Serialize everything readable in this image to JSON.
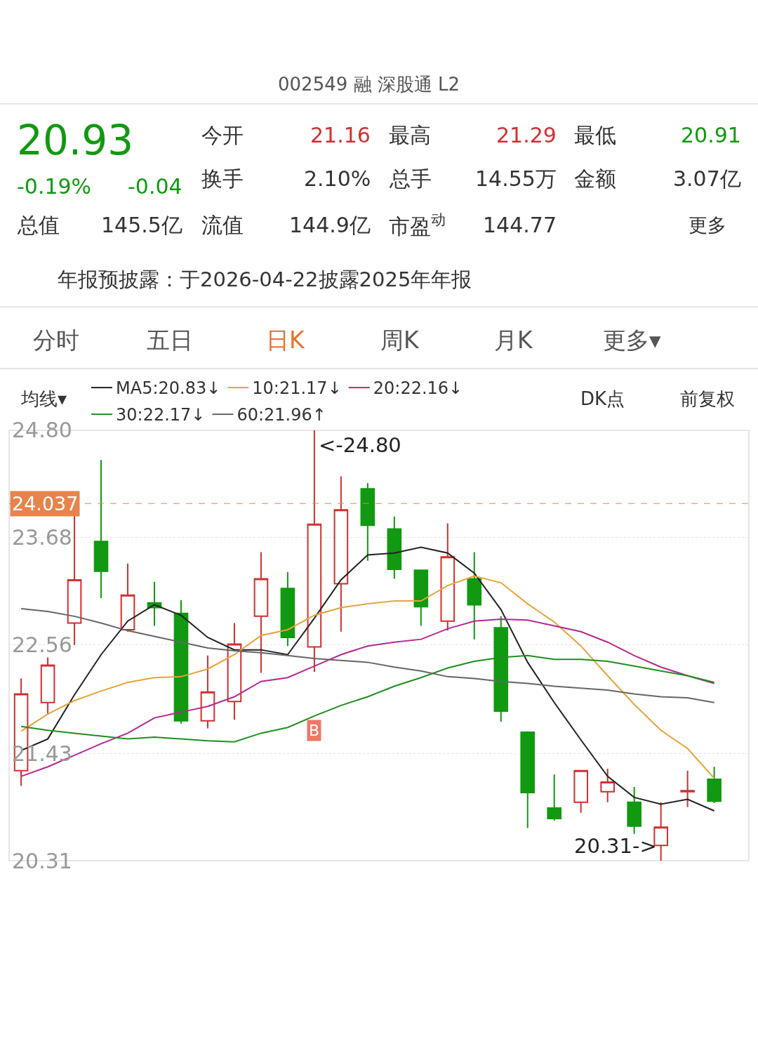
{
  "chart_data": {
    "type": "candlestick",
    "subtitle": "002549 融 深股通 L2",
    "categories": [
      null,
      null,
      null,
      null,
      null,
      null,
      null,
      null,
      null,
      null,
      null,
      null,
      null,
      null,
      null,
      null,
      null,
      null,
      null,
      null,
      null,
      null,
      null,
      null,
      null,
      null,
      null
    ],
    "ohlc": [
      [
        21.25,
        22.21,
        21.09,
        22.05
      ],
      [
        21.96,
        22.43,
        21.84,
        22.35
      ],
      [
        22.79,
        24.05,
        22.56,
        23.24
      ],
      [
        23.64,
        24.49,
        23.05,
        23.33
      ],
      [
        22.72,
        23.41,
        22.7,
        23.08
      ],
      [
        23.0,
        23.22,
        22.76,
        22.95
      ],
      [
        22.89,
        23.03,
        21.74,
        21.77
      ],
      [
        21.77,
        22.45,
        21.69,
        22.07
      ],
      [
        21.97,
        22.79,
        21.78,
        22.57
      ],
      [
        22.86,
        23.53,
        22.27,
        23.25
      ],
      [
        23.15,
        23.32,
        22.55,
        22.64
      ],
      [
        22.54,
        24.8,
        22.28,
        23.82
      ],
      [
        23.2,
        24.32,
        22.7,
        23.97
      ],
      [
        24.19,
        24.25,
        23.44,
        23.81
      ],
      [
        23.77,
        23.9,
        23.25,
        23.35
      ],
      [
        23.34,
        23.34,
        22.76,
        22.96
      ],
      [
        22.81,
        23.83,
        22.71,
        23.48
      ],
      [
        23.25,
        23.53,
        22.62,
        22.98
      ],
      [
        22.74,
        22.86,
        21.76,
        21.87
      ],
      [
        21.65,
        21.66,
        20.65,
        21.02
      ],
      [
        20.86,
        21.21,
        20.73,
        20.75
      ],
      [
        20.92,
        21.25,
        20.81,
        21.25
      ],
      [
        21.03,
        21.27,
        20.92,
        21.13
      ],
      [
        20.92,
        21.08,
        20.59,
        20.67
      ],
      [
        20.47,
        20.92,
        20.31,
        20.66
      ],
      [
        21.03,
        21.25,
        20.87,
        21.04
      ],
      [
        21.16,
        21.29,
        20.91,
        20.93
      ]
    ],
    "series": [
      {
        "name": "MA5:20.83↓",
        "type": "line",
        "color": "#222222",
        "values": [
          21.46,
          21.58,
          22.04,
          22.46,
          22.81,
          22.98,
          22.87,
          22.64,
          22.51,
          22.51,
          22.46,
          22.84,
          23.24,
          23.5,
          23.52,
          23.58,
          23.52,
          23.31,
          22.93,
          22.38,
          21.96,
          21.57,
          21.19,
          20.97,
          20.9,
          20.95,
          20.83
        ]
      },
      {
        "name": "10:21.17↓",
        "type": "line",
        "color": "#e8a33a",
        "values": [
          21.66,
          21.84,
          21.98,
          22.08,
          22.17,
          22.22,
          22.23,
          22.31,
          22.46,
          22.66,
          22.72,
          22.87,
          22.95,
          22.99,
          23.02,
          23.02,
          23.18,
          23.28,
          23.21,
          22.99,
          22.8,
          22.55,
          22.24,
          21.94,
          21.67,
          21.48,
          21.17
        ]
      },
      {
        "name": "20:22.16↓",
        "type": "line",
        "color": "#b5288f",
        "values": [
          21.19,
          21.29,
          21.41,
          21.53,
          21.64,
          21.8,
          21.86,
          21.92,
          22.02,
          22.18,
          22.22,
          22.34,
          22.46,
          22.55,
          22.59,
          22.62,
          22.73,
          22.81,
          22.83,
          22.82,
          22.76,
          22.7,
          22.59,
          22.45,
          22.33,
          22.24,
          22.16
        ]
      },
      {
        "name": "30:22.17↓",
        "type": "line",
        "color": "#1f8f1f",
        "values": [
          21.71,
          21.67,
          21.64,
          21.61,
          21.58,
          21.6,
          21.58,
          21.56,
          21.55,
          21.64,
          21.7,
          21.82,
          21.93,
          22.02,
          22.13,
          22.22,
          22.32,
          22.39,
          22.43,
          22.45,
          22.41,
          22.41,
          22.39,
          22.34,
          22.29,
          22.24,
          22.17
        ]
      },
      {
        "name": "60:21.96↑",
        "type": "line",
        "color": "#666666",
        "values": [
          22.94,
          22.91,
          22.86,
          22.79,
          22.71,
          22.65,
          22.59,
          22.53,
          22.5,
          22.48,
          22.45,
          22.42,
          22.4,
          22.38,
          22.33,
          22.29,
          22.23,
          22.21,
          22.18,
          22.16,
          22.13,
          22.11,
          22.09,
          22.05,
          22.02,
          22.01,
          21.96
        ]
      }
    ],
    "ylim": [
      20.31,
      24.8
    ],
    "yticks": [
      {
        "value": 24.8,
        "label": "24.80"
      },
      {
        "value": 23.68,
        "label": "23.68"
      },
      {
        "value": 22.56,
        "label": "22.56"
      },
      {
        "value": 21.43,
        "label": "21.43"
      },
      {
        "value": 20.31,
        "label": "20.31"
      }
    ],
    "tick_labels": "y",
    "grid": "y",
    "legend": "top",
    "ref_lines": [
      {
        "axis": "y",
        "value": 24.037,
        "label": "24.037",
        "color": "#e8834a",
        "line_style": "dashed"
      }
    ],
    "annotations": [
      "20.93",
      "-0.19%",
      "-0.04",
      "今开",
      "21.16",
      "最高",
      "21.29",
      "最低",
      "20.91",
      "换手",
      "2.10%",
      "总手",
      "14.55万",
      "金额",
      "3.07亿",
      "总值",
      "145.5亿",
      "流值",
      "144.9亿",
      "市盈$^{动}$",
      "144.77",
      "更多",
      "年报预披露：于2026-04-22披露2025年年报",
      "分时",
      "五日",
      "日K",
      "周K",
      "月K",
      "更多▾",
      "均线▾",
      "DK点",
      "前复权",
      "<-24.80",
      "B",
      "20.31->"
    ]
  }
}
